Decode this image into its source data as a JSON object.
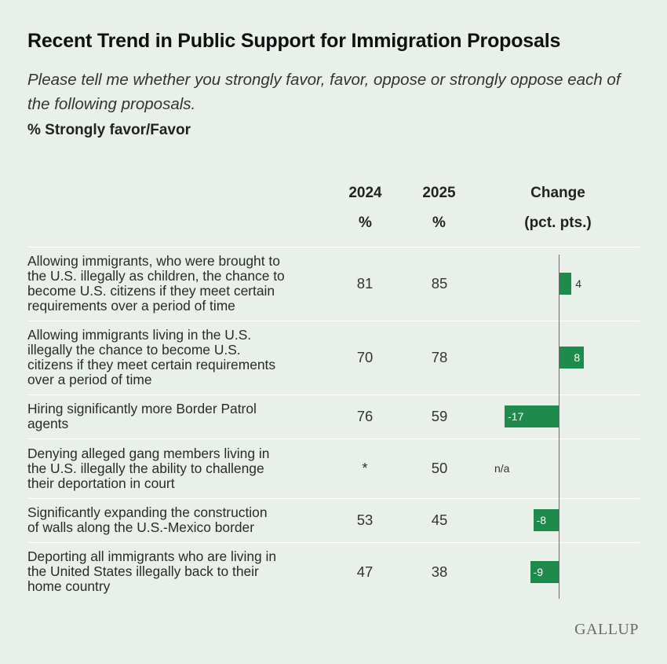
{
  "title": "Recent Trend in Public Support for Immigration Proposals",
  "subtitle": "Please tell me whether you strongly favor, favor, oppose or strongly oppose each of the following proposals.",
  "measure": "% Strongly favor/Favor",
  "columns": {
    "y2024": "2024",
    "y2024_unit": "%",
    "y2025": "2025",
    "y2025_unit": "%",
    "change": "Change",
    "change_unit": "(pct. pts.)"
  },
  "logo": "GALLUP",
  "colors": {
    "bar": "#1e8a4c",
    "background": "#e9f0ea"
  },
  "chart_data": {
    "type": "bar",
    "orientation": "horizontal",
    "title": "Recent Trend in Public Support for Immigration Proposals",
    "categories": [
      "Allowing immigrants, who were brought to the U.S. illegally as children, the chance to become U.S. citizens if they meet certain requirements over a period of time",
      "Allowing immigrants living in the U.S. illegally the chance to become U.S. citizens if they meet certain requirements over a period of time",
      "Hiring significantly more Border Patrol agents",
      "Denying alleged gang members living in the U.S. illegally the ability to challenge their deportation in court",
      "Significantly expanding the construction of walls along the U.S.-Mexico border",
      "Deporting all immigrants who are living in the United States illegally back to their home country"
    ],
    "rows": [
      {
        "y2024": "81",
        "y2025": "85",
        "change": 4,
        "change_label": "4"
      },
      {
        "y2024": "70",
        "y2025": "78",
        "change": 8,
        "change_label": "8"
      },
      {
        "y2024": "76",
        "y2025": "59",
        "change": -17,
        "change_label": "-17"
      },
      {
        "y2024": "*",
        "y2025": "50",
        "change": null,
        "change_label": "n/a"
      },
      {
        "y2024": "53",
        "y2025": "45",
        "change": -8,
        "change_label": "-8"
      },
      {
        "y2024": "47",
        "y2025": "38",
        "change": -9,
        "change_label": "-9"
      }
    ],
    "series": [
      {
        "name": "Change",
        "values": [
          4,
          8,
          -17,
          null,
          -8,
          -9
        ]
      }
    ]
  }
}
